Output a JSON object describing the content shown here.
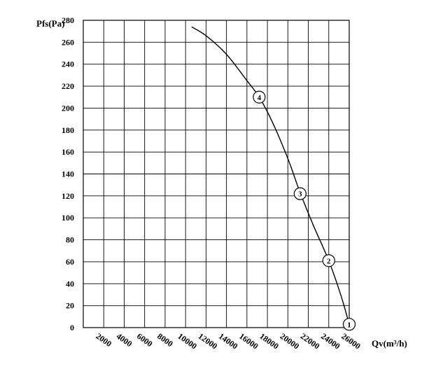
{
  "chart_data": {
    "type": "line",
    "ylabel": "Pfs(Pa)",
    "xlabel": "Qv(m³/h)",
    "xlim": [
      0,
      26000
    ],
    "ylim": [
      0,
      280
    ],
    "grid": true,
    "x_ticks": [
      2000,
      4000,
      6000,
      8000,
      10000,
      12000,
      14000,
      16000,
      18000,
      20000,
      22000,
      24000,
      26000
    ],
    "x_tick_labels": [
      "2000",
      "4000",
      "6000",
      "8000",
      "10000",
      "12000",
      "14000",
      "16000",
      "18000",
      "20000",
      "22000",
      "24000",
      "26000"
    ],
    "y_ticks": [
      0,
      20,
      40,
      60,
      80,
      100,
      120,
      140,
      160,
      180,
      200,
      220,
      240,
      260,
      280
    ],
    "y_tick_labels": [
      "0",
      "20",
      "40",
      "60",
      "80",
      "100",
      "120",
      "140",
      "160",
      "180",
      "200",
      "220",
      "240",
      "260",
      "280"
    ],
    "series": [
      {
        "x": [
          10600,
          12000,
          14000,
          16000,
          17200,
          18500,
          20000,
          21200,
          22500,
          24000,
          25200,
          26000
        ],
        "y": [
          274,
          266,
          249,
          225,
          210,
          187,
          154,
          123,
          93,
          61,
          29,
          3
        ]
      }
    ],
    "marked_points": [
      {
        "label": "1",
        "x": 26000,
        "y": 3
      },
      {
        "label": "2",
        "x": 24000,
        "y": 61
      },
      {
        "label": "3",
        "x": 21200,
        "y": 122
      },
      {
        "label": "4",
        "x": 17200,
        "y": 210
      }
    ]
  }
}
